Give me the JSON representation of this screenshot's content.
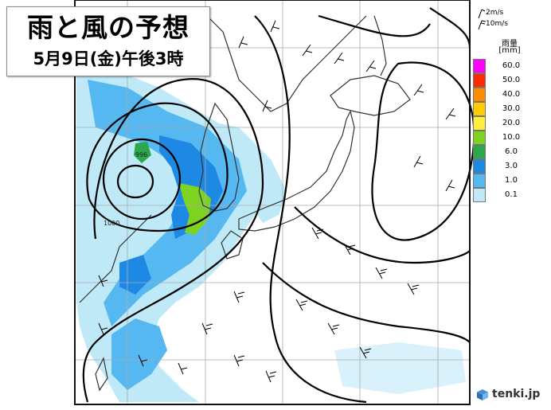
{
  "title": {
    "main": "雨と風の予想",
    "sub": "5月9日(金)午後3時"
  },
  "wind_legend": {
    "items": [
      {
        "label": "2m/s"
      },
      {
        "label": "10m/s"
      }
    ]
  },
  "rain_legend": {
    "title": "雨量",
    "unit": "[mm]",
    "levels": [
      {
        "value": "60.0",
        "color": "#ff00ff"
      },
      {
        "value": "50.0",
        "color": "#ff2a00"
      },
      {
        "value": "40.0",
        "color": "#ff8c00"
      },
      {
        "value": "30.0",
        "color": "#ffcc00"
      },
      {
        "value": "20.0",
        "color": "#ffee3a"
      },
      {
        "value": "10.0",
        "color": "#7ed321"
      },
      {
        "value": "6.0",
        "color": "#2aa84a"
      },
      {
        "value": "3.0",
        "color": "#1e88e5"
      },
      {
        "value": "1.0",
        "color": "#56b8f0"
      },
      {
        "value": "0.1",
        "color": "#bfe9f7"
      }
    ]
  },
  "isobar_labels": {
    "a": "996",
    "b": "1000"
  },
  "brand": {
    "name": "tenki.jp",
    "logo_icon": "cube-icon"
  },
  "colors": {
    "frame": "#111111",
    "coast": "#333333",
    "isobar": "#000000",
    "grid": "#aaaaaa",
    "rain_light": "#bfe9f7",
    "rain_mid": "#56b8f0",
    "rain_heavy": "#1e88e5",
    "rain_green": "#7ed321"
  }
}
